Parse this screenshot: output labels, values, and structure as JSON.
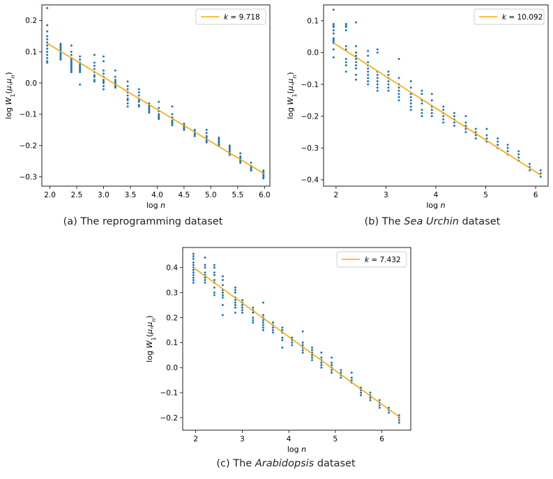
{
  "chart_data": [
    {
      "type": "scatter",
      "id": "a",
      "caption_pre": "(a) The reprogramming dataset",
      "caption_em": "",
      "caption_post": "",
      "xlabel": "log n",
      "ylabel": "log W1(μ,μn)",
      "xlim": [
        1.85,
        6.1
      ],
      "ylim": [
        -0.33,
        0.25
      ],
      "xticks": [
        2.0,
        2.5,
        3.0,
        3.5,
        4.0,
        4.5,
        5.0,
        5.5,
        6.0
      ],
      "xtick_labels": [
        "2.0",
        "2.5",
        "3.0",
        "3.5",
        "4.0",
        "4.5",
        "5.0",
        "5.5",
        "6.0"
      ],
      "yticks": [
        -0.3,
        -0.2,
        -0.1,
        0.0,
        0.1,
        0.2
      ],
      "ytick_labels": [
        "−0.3",
        "−0.2",
        "−0.1",
        "0.0",
        "0.1",
        "0.2"
      ],
      "series": [
        {
          "name": "fit",
          "kind": "line",
          "color": "#ffa500",
          "x": [
            1.95,
            5.99
          ],
          "y": [
            0.127,
            -0.29
          ]
        },
        {
          "name": "samples",
          "kind": "scatter",
          "color": "#1f77b4",
          "columns": [
            {
              "x": 1.95,
              "y": [
                0.24,
                0.185,
                0.165,
                0.15,
                0.14,
                0.13,
                0.12,
                0.11,
                0.1,
                0.09,
                0.08,
                0.07,
                0.065
              ]
            },
            {
              "x": 2.2,
              "y": [
                0.125,
                0.12,
                0.115,
                0.11,
                0.105,
                0.1,
                0.095,
                0.09,
                0.085,
                0.08,
                0.075
              ]
            },
            {
              "x": 2.4,
              "y": [
                0.12,
                0.1,
                0.09,
                0.08,
                0.075,
                0.07,
                0.065,
                0.06,
                0.055,
                0.05,
                0.045,
                0.04,
                0.035
              ]
            },
            {
              "x": 2.56,
              "y": [
                0.085,
                0.075,
                0.065,
                0.06,
                0.055,
                0.05,
                0.045,
                0.04,
                0.035,
                -0.005
              ]
            },
            {
              "x": 2.83,
              "y": [
                0.09,
                0.065,
                0.055,
                0.045,
                0.035,
                0.025,
                0.02,
                0.01,
                0.005
              ]
            },
            {
              "x": 3.0,
              "y": [
                0.085,
                0.07,
                0.04,
                0.03,
                0.02,
                0.01,
                0.005,
                0.0,
                -0.01,
                -0.02
              ]
            },
            {
              "x": 3.22,
              "y": [
                0.04,
                0.02,
                0.01,
                0.005,
                0.0,
                -0.005,
                -0.01,
                -0.015
              ]
            },
            {
              "x": 3.45,
              "y": [
                0.005,
                -0.01,
                -0.02,
                -0.03,
                -0.04,
                -0.05,
                -0.055,
                -0.065,
                -0.075
              ]
            },
            {
              "x": 3.66,
              "y": [
                -0.02,
                -0.03,
                -0.04,
                -0.05,
                -0.055,
                -0.06,
                -0.07,
                -0.075
              ]
            },
            {
              "x": 3.85,
              "y": [
                -0.065,
                -0.07,
                -0.075,
                -0.08,
                -0.085,
                -0.09,
                -0.095
              ]
            },
            {
              "x": 4.03,
              "y": [
                -0.06,
                -0.08,
                -0.09,
                -0.1,
                -0.105,
                -0.11,
                -0.115
              ]
            },
            {
              "x": 4.28,
              "y": [
                -0.075,
                -0.1,
                -0.11,
                -0.12,
                -0.125,
                -0.13,
                -0.135
              ]
            },
            {
              "x": 4.5,
              "y": [
                -0.13,
                -0.135,
                -0.14,
                -0.145,
                -0.15
              ]
            },
            {
              "x": 4.7,
              "y": [
                -0.15,
                -0.155,
                -0.16,
                -0.165,
                -0.17
              ]
            },
            {
              "x": 4.92,
              "y": [
                -0.15,
                -0.16,
                -0.17,
                -0.175,
                -0.18,
                -0.185,
                -0.19
              ]
            },
            {
              "x": 5.15,
              "y": [
                -0.175,
                -0.18,
                -0.185,
                -0.19,
                -0.195,
                -0.2
              ]
            },
            {
              "x": 5.35,
              "y": [
                -0.2,
                -0.205,
                -0.21,
                -0.215,
                -0.22,
                -0.225,
                -0.23
              ]
            },
            {
              "x": 5.55,
              "y": [
                -0.225,
                -0.235,
                -0.24,
                -0.245,
                -0.25,
                -0.255
              ]
            },
            {
              "x": 5.75,
              "y": [
                -0.255,
                -0.265,
                -0.27,
                -0.275,
                -0.28
              ]
            },
            {
              "x": 5.98,
              "y": [
                -0.28,
                -0.285,
                -0.29,
                -0.295,
                -0.3,
                -0.305
              ]
            }
          ]
        }
      ],
      "legend": {
        "label_prefix": "k = ",
        "value": "9.718",
        "position": "top-right"
      }
    },
    {
      "type": "scatter",
      "id": "b",
      "caption_pre": "(b) The ",
      "caption_em": "Sea Urchin",
      "caption_post": " dataset",
      "xlabel": "log n",
      "ylabel": "log W1(μ,μn)",
      "xlim": [
        1.75,
        6.25
      ],
      "ylim": [
        -0.42,
        0.15
      ],
      "xticks": [
        2,
        3,
        4,
        5,
        6
      ],
      "xtick_labels": [
        "2",
        "3",
        "4",
        "5",
        "6"
      ],
      "yticks": [
        -0.4,
        -0.3,
        -0.2,
        -0.1,
        0.0,
        0.1
      ],
      "ytick_labels": [
        "−0.4",
        "−0.3",
        "−0.2",
        "−0.1",
        "0.0",
        "0.1"
      ],
      "series": [
        {
          "name": "fit",
          "kind": "line",
          "color": "#ffa500",
          "x": [
            1.95,
            6.1
          ],
          "y": [
            0.03,
            -0.385
          ]
        },
        {
          "name": "samples",
          "kind": "scatter",
          "color": "#1f77b4",
          "columns": [
            {
              "x": 1.95,
              "y": [
                0.135,
                0.09,
                0.085,
                0.08,
                0.07,
                0.06,
                0.045,
                0.04,
                0.035,
                0.03,
                0.01,
                -0.015
              ]
            },
            {
              "x": 2.2,
              "y": [
                0.09,
                0.085,
                0.08,
                0.07,
                0.02,
                0.01,
                -0.02,
                -0.03,
                -0.04,
                -0.06
              ]
            },
            {
              "x": 2.4,
              "y": [
                0.095,
                0.02,
                0.0,
                -0.01,
                -0.02,
                -0.03,
                -0.04,
                -0.05,
                -0.07,
                -0.085
              ]
            },
            {
              "x": 2.64,
              "y": [
                0.005,
                -0.01,
                -0.03,
                -0.04,
                -0.05,
                -0.06,
                -0.07,
                -0.08,
                -0.09,
                -0.1
              ]
            },
            {
              "x": 2.83,
              "y": [
                0.01,
                0.0,
                -0.06,
                -0.07,
                -0.08,
                -0.09,
                -0.1,
                -0.11,
                -0.12
              ]
            },
            {
              "x": 3.05,
              "y": [
                -0.06,
                -0.07,
                -0.08,
                -0.09,
                -0.1,
                -0.11,
                -0.12
              ]
            },
            {
              "x": 3.26,
              "y": [
                -0.02,
                -0.08,
                -0.1,
                -0.11,
                -0.12,
                -0.13,
                -0.14,
                -0.15
              ]
            },
            {
              "x": 3.5,
              "y": [
                -0.09,
                -0.11,
                -0.13,
                -0.14,
                -0.15,
                -0.16,
                -0.17,
                -0.18
              ]
            },
            {
              "x": 3.72,
              "y": [
                -0.12,
                -0.13,
                -0.15,
                -0.16,
                -0.18,
                -0.19,
                -0.2
              ]
            },
            {
              "x": 3.92,
              "y": [
                -0.13,
                -0.15,
                -0.17,
                -0.18,
                -0.19,
                -0.2
              ]
            },
            {
              "x": 4.15,
              "y": [
                -0.17,
                -0.18,
                -0.19,
                -0.2,
                -0.21,
                -0.22
              ]
            },
            {
              "x": 4.37,
              "y": [
                -0.19,
                -0.2,
                -0.21,
                -0.22,
                -0.23
              ]
            },
            {
              "x": 4.6,
              "y": [
                -0.2,
                -0.22,
                -0.23,
                -0.24,
                -0.25
              ]
            },
            {
              "x": 4.8,
              "y": [
                -0.24,
                -0.25,
                -0.26,
                -0.27
              ]
            },
            {
              "x": 5.02,
              "y": [
                -0.24,
                -0.26,
                -0.27,
                -0.28
              ]
            },
            {
              "x": 5.24,
              "y": [
                -0.27,
                -0.28,
                -0.29,
                -0.3
              ]
            },
            {
              "x": 5.44,
              "y": [
                -0.29,
                -0.3,
                -0.31,
                -0.32
              ]
            },
            {
              "x": 5.66,
              "y": [
                -0.31,
                -0.32,
                -0.33,
                -0.34
              ]
            },
            {
              "x": 5.88,
              "y": [
                -0.35,
                -0.36,
                -0.37
              ]
            },
            {
              "x": 6.1,
              "y": [
                -0.37,
                -0.38,
                -0.39
              ]
            }
          ]
        }
      ],
      "legend": {
        "label_prefix": "k = ",
        "value": "10.092",
        "position": "top-right"
      }
    },
    {
      "type": "scatter",
      "id": "c",
      "caption_pre": "(c) The ",
      "caption_em": "Arabidopsis",
      "caption_post": " dataset",
      "xlabel": "log n",
      "ylabel": "log W1(μ,μn)",
      "xlim": [
        1.72,
        6.62
      ],
      "ylim": [
        -0.25,
        0.48
      ],
      "xticks": [
        2,
        3,
        4,
        5,
        6
      ],
      "xtick_labels": [
        "2",
        "3",
        "4",
        "5",
        "6"
      ],
      "yticks": [
        -0.2,
        -0.1,
        0.0,
        0.1,
        0.2,
        0.3,
        0.4
      ],
      "ytick_labels": [
        "−0.2",
        "−0.1",
        "0.0",
        "0.1",
        "0.2",
        "0.3",
        "0.4"
      ],
      "series": [
        {
          "name": "fit",
          "kind": "line",
          "color": "#ffa500",
          "x": [
            1.95,
            6.38
          ],
          "y": [
            0.4,
            -0.198
          ]
        },
        {
          "name": "samples",
          "kind": "scatter",
          "color": "#1f77b4",
          "columns": [
            {
              "x": 1.95,
              "y": [
                0.455,
                0.445,
                0.435,
                0.42,
                0.41,
                0.4,
                0.39,
                0.38,
                0.37,
                0.36,
                0.35,
                0.34
              ]
            },
            {
              "x": 2.2,
              "y": [
                0.44,
                0.41,
                0.4,
                0.38,
                0.37,
                0.36,
                0.35,
                0.34
              ]
            },
            {
              "x": 2.4,
              "y": [
                0.41,
                0.4,
                0.38,
                0.37,
                0.35,
                0.34,
                0.32,
                0.3,
                0.29
              ]
            },
            {
              "x": 2.58,
              "y": [
                0.365,
                0.35,
                0.33,
                0.31,
                0.3,
                0.29,
                0.28,
                0.25,
                0.21
              ]
            },
            {
              "x": 2.85,
              "y": [
                0.32,
                0.31,
                0.3,
                0.28,
                0.27,
                0.26,
                0.25,
                0.24,
                0.22
              ]
            },
            {
              "x": 3.0,
              "y": [
                0.27,
                0.26,
                0.25,
                0.24,
                0.23,
                0.22
              ]
            },
            {
              "x": 3.23,
              "y": [
                0.24,
                0.23,
                0.22,
                0.2,
                0.19,
                0.18
              ]
            },
            {
              "x": 3.45,
              "y": [
                0.26,
                0.21,
                0.2,
                0.19,
                0.18,
                0.17,
                0.16,
                0.15
              ]
            },
            {
              "x": 3.66,
              "y": [
                0.18,
                0.17,
                0.16,
                0.15,
                0.14
              ]
            },
            {
              "x": 3.86,
              "y": [
                0.16,
                0.15,
                0.14,
                0.12,
                0.11,
                0.08
              ]
            },
            {
              "x": 4.07,
              "y": [
                0.12,
                0.11,
                0.1,
                0.09
              ]
            },
            {
              "x": 4.3,
              "y": [
                0.145,
                0.1,
                0.09,
                0.08,
                0.07,
                0.06
              ]
            },
            {
              "x": 4.5,
              "y": [
                0.08,
                0.07,
                0.06,
                0.05,
                0.04,
                0.03
              ]
            },
            {
              "x": 4.7,
              "y": [
                0.06,
                0.04,
                0.03,
                0.02,
                0.01,
                0.0
              ]
            },
            {
              "x": 4.92,
              "y": [
                0.04,
                0.02,
                0.01,
                0.0,
                -0.01,
                -0.02
              ]
            },
            {
              "x": 5.12,
              "y": [
                -0.01,
                -0.02,
                -0.03,
                -0.04
              ]
            },
            {
              "x": 5.35,
              "y": [
                -0.02,
                -0.04,
                -0.05,
                -0.06
              ]
            },
            {
              "x": 5.55,
              "y": [
                -0.08,
                -0.09,
                -0.1,
                -0.11
              ]
            },
            {
              "x": 5.75,
              "y": [
                -0.1,
                -0.11,
                -0.12,
                -0.13
              ]
            },
            {
              "x": 5.95,
              "y": [
                -0.13,
                -0.14,
                -0.15,
                -0.16
              ]
            },
            {
              "x": 6.15,
              "y": [
                -0.16,
                -0.17,
                -0.18
              ]
            },
            {
              "x": 6.37,
              "y": [
                -0.19,
                -0.2,
                -0.21,
                -0.22
              ]
            }
          ]
        }
      ],
      "legend": {
        "label_prefix": "k = ",
        "value": "7.432",
        "position": "top-right"
      }
    }
  ]
}
